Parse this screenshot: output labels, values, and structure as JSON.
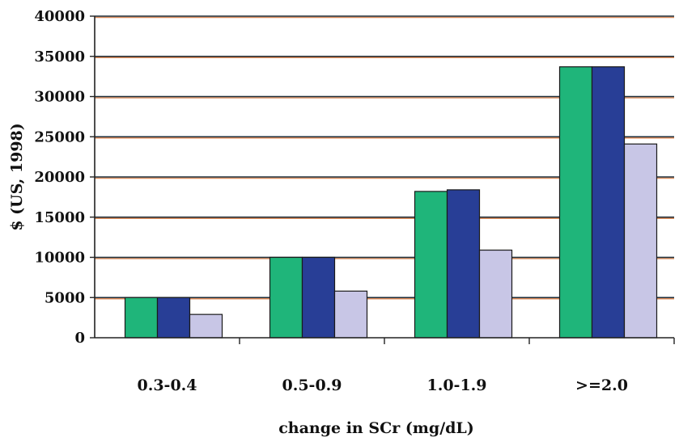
{
  "chart_data": {
    "type": "bar",
    "categories": [
      "0.3-0.4",
      "0.5-0.9",
      "1.0-1.9",
      ">=2.0"
    ],
    "series": [
      {
        "values": [
          5000,
          10000,
          18200,
          33700
        ]
      },
      {
        "values": [
          5000,
          10000,
          18400,
          33700
        ]
      },
      {
        "values": [
          2900,
          5800,
          10900,
          24100
        ]
      }
    ],
    "series_colors": [
      "#1fb57a",
      "#283e96",
      "#c8c6e6"
    ],
    "xlabel": "change in SCr (mg/dL)",
    "ylabel": "$ (US, 1998)",
    "ylim": [
      0,
      40000
    ],
    "yticks": [
      "0",
      "5000",
      "10000",
      "15000",
      "20000",
      "25000",
      "30000",
      "35000",
      "40000"
    ],
    "grid": true,
    "gridline_color": "#1e2e3a",
    "gridline_shadow_color": "#d98a5a",
    "legend": "none"
  }
}
